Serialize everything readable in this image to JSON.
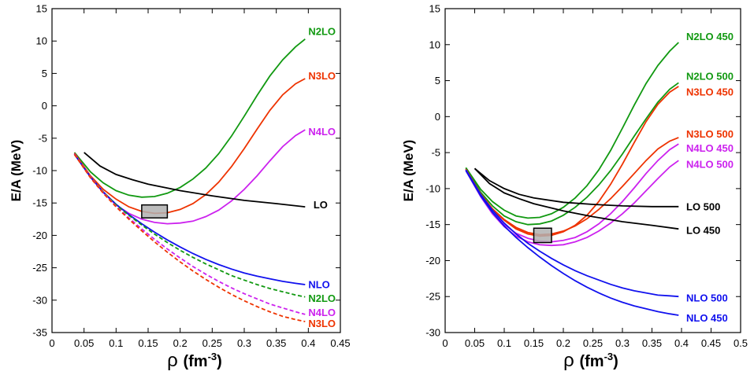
{
  "chart_data": [
    {
      "type": "line",
      "xlabel_symbol": "ρ",
      "xlabel_unit": "(fm",
      "xlabel_exp": "-3",
      "xlabel_close": ")",
      "ylabel": "E/A (MeV)",
      "xlim": [
        0,
        0.45
      ],
      "ylim": [
        -35,
        15
      ],
      "xticks": [
        "0",
        "0.05",
        "0.1",
        "0.15",
        "0.2",
        "0.25",
        "0.3",
        "0.35",
        "0.4",
        "0.45"
      ],
      "yticks": [
        "15",
        "10",
        "5",
        "0",
        "-5",
        "-10",
        "-15",
        "-20",
        "-25",
        "-30",
        "-35"
      ],
      "box": {
        "x": [
          0.14,
          0.18
        ],
        "y": [
          -17.3,
          -15.3
        ]
      },
      "series": [
        {
          "name": "N2LO",
          "label": "N2LO",
          "color": "#119911",
          "dash": false,
          "x": [
            0.035,
            0.06,
            0.08,
            0.1,
            0.12,
            0.14,
            0.16,
            0.18,
            0.2,
            0.22,
            0.24,
            0.26,
            0.28,
            0.3,
            0.32,
            0.34,
            0.36,
            0.38,
            0.395
          ],
          "y": [
            -7.2,
            -10.2,
            -11.9,
            -13.1,
            -13.8,
            -14.1,
            -14.0,
            -13.5,
            -12.6,
            -11.3,
            -9.6,
            -7.4,
            -4.7,
            -1.6,
            1.6,
            4.6,
            7.1,
            9.1,
            10.3
          ]
        },
        {
          "name": "N3LO",
          "label": "N3LO",
          "color": "#ee3300",
          "dash": false,
          "x": [
            0.035,
            0.06,
            0.08,
            0.1,
            0.12,
            0.14,
            0.16,
            0.18,
            0.2,
            0.22,
            0.24,
            0.26,
            0.28,
            0.3,
            0.32,
            0.34,
            0.36,
            0.38,
            0.395
          ],
          "y": [
            -7.3,
            -10.8,
            -12.9,
            -14.4,
            -15.6,
            -16.3,
            -16.6,
            -16.5,
            -16.0,
            -15.1,
            -13.7,
            -11.8,
            -9.4,
            -6.6,
            -3.6,
            -0.7,
            1.7,
            3.4,
            4.2
          ]
        },
        {
          "name": "N4LO",
          "label": "N4LO",
          "color": "#cc22ee",
          "dash": false,
          "x": [
            0.035,
            0.06,
            0.08,
            0.1,
            0.12,
            0.14,
            0.16,
            0.18,
            0.2,
            0.22,
            0.24,
            0.26,
            0.28,
            0.3,
            0.32,
            0.34,
            0.36,
            0.38,
            0.395
          ],
          "y": [
            -7.4,
            -11.0,
            -13.4,
            -15.3,
            -16.6,
            -17.5,
            -18.0,
            -18.2,
            -18.1,
            -17.8,
            -17.1,
            -16.1,
            -14.7,
            -12.9,
            -10.8,
            -8.5,
            -6.3,
            -4.6,
            -3.7
          ]
        },
        {
          "name": "LO",
          "label": "LO",
          "color": "#000000",
          "dash": false,
          "x": [
            0.05,
            0.075,
            0.1,
            0.125,
            0.15,
            0.2,
            0.25,
            0.3,
            0.35,
            0.395
          ],
          "y": [
            -7.2,
            -9.3,
            -10.6,
            -11.4,
            -12.1,
            -13.1,
            -13.9,
            -14.6,
            -15.1,
            -15.6
          ]
        },
        {
          "name": "NLO",
          "label": "NLO",
          "color": "#1111ee",
          "dash": false,
          "x": [
            0.035,
            0.06,
            0.08,
            0.1,
            0.12,
            0.14,
            0.16,
            0.18,
            0.2,
            0.22,
            0.24,
            0.26,
            0.28,
            0.3,
            0.32,
            0.34,
            0.36,
            0.38,
            0.395
          ],
          "y": [
            -7.5,
            -11.0,
            -13.3,
            -15.2,
            -16.8,
            -18.2,
            -19.5,
            -20.7,
            -21.8,
            -22.8,
            -23.7,
            -24.5,
            -25.2,
            -25.8,
            -26.3,
            -26.7,
            -27.1,
            -27.4,
            -27.6
          ]
        },
        {
          "name": "N2LO-dashed",
          "label": "N2LO",
          "color": "#119911",
          "dash": true,
          "x": [
            0.035,
            0.06,
            0.08,
            0.1,
            0.12,
            0.14,
            0.16,
            0.18,
            0.2,
            0.22,
            0.24,
            0.26,
            0.28,
            0.3,
            0.32,
            0.34,
            0.36,
            0.38,
            0.395
          ],
          "y": [
            -7.5,
            -11.0,
            -13.3,
            -15.3,
            -16.9,
            -18.4,
            -19.8,
            -21.1,
            -22.3,
            -23.4,
            -24.4,
            -25.3,
            -26.2,
            -26.9,
            -27.6,
            -28.2,
            -28.7,
            -29.2,
            -29.5
          ]
        },
        {
          "name": "N4LO-dashed",
          "label": "N4LO",
          "color": "#cc22ee",
          "dash": true,
          "x": [
            0.035,
            0.06,
            0.08,
            0.1,
            0.12,
            0.14,
            0.16,
            0.18,
            0.2,
            0.22,
            0.24,
            0.26,
            0.28,
            0.3,
            0.32,
            0.34,
            0.36,
            0.38,
            0.395
          ],
          "y": [
            -7.5,
            -11.0,
            -13.4,
            -15.5,
            -17.3,
            -19.0,
            -20.6,
            -22.1,
            -23.5,
            -24.8,
            -26.0,
            -27.1,
            -28.1,
            -29.0,
            -29.8,
            -30.6,
            -31.2,
            -31.8,
            -32.2
          ]
        },
        {
          "name": "N3LO-dashed",
          "label": "N3LO",
          "color": "#ee3300",
          "dash": true,
          "x": [
            0.035,
            0.06,
            0.08,
            0.1,
            0.12,
            0.14,
            0.16,
            0.18,
            0.2,
            0.22,
            0.24,
            0.26,
            0.28,
            0.3,
            0.32,
            0.34,
            0.36,
            0.38,
            0.395
          ],
          "y": [
            -7.5,
            -11.1,
            -13.5,
            -15.6,
            -17.5,
            -19.3,
            -21.0,
            -22.6,
            -24.1,
            -25.5,
            -26.8,
            -28.0,
            -29.1,
            -30.1,
            -31.0,
            -31.8,
            -32.5,
            -33.0,
            -33.3
          ]
        }
      ],
      "labels": [
        {
          "text": "N2LO",
          "color": "#119911",
          "x": 0.4,
          "y": 11.5
        },
        {
          "text": "N3LO",
          "color": "#ee3300",
          "x": 0.4,
          "y": 4.6
        },
        {
          "text": "N4LO",
          "color": "#cc22ee",
          "x": 0.4,
          "y": -4.0
        },
        {
          "text": "LO",
          "color": "#000000",
          "x": 0.408,
          "y": -15.3
        },
        {
          "text": "NLO",
          "color": "#1111ee",
          "x": 0.4,
          "y": -27.6
        },
        {
          "text": "N2LO",
          "color": "#119911",
          "x": 0.4,
          "y": -29.7
        },
        {
          "text": "N4LO",
          "color": "#cc22ee",
          "x": 0.4,
          "y": -31.9
        },
        {
          "text": "N3LO",
          "color": "#ee3300",
          "x": 0.4,
          "y": -33.6
        }
      ]
    },
    {
      "type": "line",
      "xlabel_symbol": "ρ",
      "xlabel_unit": "(fm",
      "xlabel_exp": "-3",
      "xlabel_close": ")",
      "ylabel": "E/A (MeV)",
      "xlim": [
        0,
        0.5
      ],
      "ylim": [
        -30,
        15
      ],
      "xticks": [
        "0",
        "0.05",
        "0.1",
        "0.15",
        "0.2",
        "0.25",
        "0.3",
        "0.35",
        "0.4",
        "0.45",
        "0.5"
      ],
      "yticks": [
        "15",
        "10",
        "5",
        "0",
        "-5",
        "-10",
        "-15",
        "-20",
        "-25",
        "-30"
      ],
      "box": {
        "x": [
          0.15,
          0.18
        ],
        "y": [
          -17.5,
          -15.5
        ]
      },
      "series": [
        {
          "name": "N2LO 450",
          "label": "N2LO 450",
          "color": "#119911",
          "dash": false,
          "x": [
            0.035,
            0.06,
            0.08,
            0.1,
            0.12,
            0.14,
            0.16,
            0.18,
            0.2,
            0.22,
            0.24,
            0.26,
            0.28,
            0.3,
            0.32,
            0.34,
            0.36,
            0.38,
            0.395
          ],
          "y": [
            -7.1,
            -10.1,
            -11.8,
            -13.0,
            -13.8,
            -14.1,
            -14.0,
            -13.5,
            -12.6,
            -11.3,
            -9.6,
            -7.4,
            -4.7,
            -1.6,
            1.6,
            4.6,
            7.1,
            9.1,
            10.3
          ]
        },
        {
          "name": "N2LO 500",
          "label": "N2LO 500",
          "color": "#119911",
          "dash": false,
          "x": [
            0.035,
            0.06,
            0.08,
            0.1,
            0.12,
            0.14,
            0.16,
            0.18,
            0.2,
            0.22,
            0.24,
            0.26,
            0.28,
            0.3,
            0.32,
            0.34,
            0.36,
            0.38,
            0.395
          ],
          "y": [
            -7.2,
            -10.5,
            -12.4,
            -13.8,
            -14.6,
            -15.0,
            -14.9,
            -14.5,
            -13.7,
            -12.6,
            -11.2,
            -9.5,
            -7.5,
            -5.2,
            -2.7,
            -0.3,
            2.0,
            3.8,
            4.7
          ]
        },
        {
          "name": "N3LO 450",
          "label": "N3LO 450",
          "color": "#ee3300",
          "dash": false,
          "x": [
            0.035,
            0.06,
            0.08,
            0.1,
            0.12,
            0.14,
            0.16,
            0.18,
            0.2,
            0.22,
            0.24,
            0.26,
            0.28,
            0.3,
            0.32,
            0.34,
            0.36,
            0.38,
            0.395
          ],
          "y": [
            -7.3,
            -10.8,
            -12.9,
            -14.4,
            -15.6,
            -16.3,
            -16.6,
            -16.5,
            -16.0,
            -15.1,
            -13.7,
            -11.8,
            -9.4,
            -6.6,
            -3.6,
            -0.7,
            1.7,
            3.4,
            4.2
          ]
        },
        {
          "name": "N3LO 500",
          "label": "N3LO 500",
          "color": "#ee3300",
          "dash": false,
          "x": [
            0.035,
            0.06,
            0.08,
            0.1,
            0.12,
            0.14,
            0.16,
            0.18,
            0.2,
            0.22,
            0.24,
            0.26,
            0.28,
            0.3,
            0.32,
            0.34,
            0.36,
            0.38,
            0.395
          ],
          "y": [
            -7.3,
            -10.7,
            -12.8,
            -14.3,
            -15.4,
            -16.1,
            -16.4,
            -16.3,
            -15.9,
            -15.2,
            -14.2,
            -12.9,
            -11.4,
            -9.7,
            -7.9,
            -6.1,
            -4.5,
            -3.4,
            -2.9
          ]
        },
        {
          "name": "N4LO 450",
          "label": "N4LO 450",
          "color": "#cc22ee",
          "dash": false,
          "x": [
            0.035,
            0.06,
            0.08,
            0.1,
            0.12,
            0.14,
            0.16,
            0.18,
            0.2,
            0.22,
            0.24,
            0.26,
            0.28,
            0.3,
            0.32,
            0.34,
            0.36,
            0.38,
            0.395
          ],
          "y": [
            -7.4,
            -11.0,
            -13.3,
            -15.0,
            -16.2,
            -16.9,
            -17.3,
            -17.4,
            -17.2,
            -16.8,
            -16.0,
            -14.9,
            -13.5,
            -11.8,
            -9.9,
            -7.9,
            -6.1,
            -4.6,
            -3.8
          ]
        },
        {
          "name": "N4LO 500",
          "label": "N4LO 500",
          "color": "#cc22ee",
          "dash": false,
          "x": [
            0.035,
            0.06,
            0.08,
            0.1,
            0.12,
            0.14,
            0.16,
            0.18,
            0.2,
            0.22,
            0.24,
            0.26,
            0.28,
            0.3,
            0.32,
            0.34,
            0.36,
            0.38,
            0.395
          ],
          "y": [
            -7.5,
            -11.1,
            -13.5,
            -15.3,
            -16.6,
            -17.4,
            -17.8,
            -17.9,
            -17.8,
            -17.4,
            -16.8,
            -15.9,
            -14.8,
            -13.5,
            -12.0,
            -10.3,
            -8.6,
            -7.0,
            -6.1
          ]
        },
        {
          "name": "LO 500",
          "label": "LO 500",
          "color": "#000000",
          "dash": false,
          "x": [
            0.05,
            0.075,
            0.1,
            0.125,
            0.15,
            0.2,
            0.25,
            0.3,
            0.35,
            0.395
          ],
          "y": [
            -7.2,
            -8.9,
            -10.0,
            -10.8,
            -11.3,
            -11.9,
            -12.2,
            -12.4,
            -12.5,
            -12.5
          ]
        },
        {
          "name": "LO 450",
          "label": "LO 450",
          "color": "#000000",
          "dash": false,
          "x": [
            0.05,
            0.075,
            0.1,
            0.125,
            0.15,
            0.2,
            0.25,
            0.3,
            0.35,
            0.395
          ],
          "y": [
            -7.2,
            -9.3,
            -10.6,
            -11.4,
            -12.1,
            -13.1,
            -13.9,
            -14.6,
            -15.1,
            -15.6
          ]
        },
        {
          "name": "NLO 500",
          "label": "NLO 500",
          "color": "#1111ee",
          "dash": false,
          "x": [
            0.035,
            0.06,
            0.08,
            0.1,
            0.12,
            0.14,
            0.16,
            0.18,
            0.2,
            0.22,
            0.24,
            0.26,
            0.28,
            0.3,
            0.32,
            0.34,
            0.36,
            0.38,
            0.395
          ],
          "y": [
            -7.4,
            -10.8,
            -13.0,
            -14.8,
            -16.3,
            -17.6,
            -18.7,
            -19.7,
            -20.6,
            -21.4,
            -22.1,
            -22.7,
            -23.3,
            -23.8,
            -24.2,
            -24.5,
            -24.8,
            -24.9,
            -25.0
          ]
        },
        {
          "name": "NLO 450",
          "label": "NLO 450",
          "color": "#1111ee",
          "dash": false,
          "x": [
            0.035,
            0.06,
            0.08,
            0.1,
            0.12,
            0.14,
            0.16,
            0.18,
            0.2,
            0.22,
            0.24,
            0.26,
            0.28,
            0.3,
            0.32,
            0.34,
            0.36,
            0.38,
            0.395
          ],
          "y": [
            -7.5,
            -11.0,
            -13.3,
            -15.2,
            -16.8,
            -18.2,
            -19.5,
            -20.7,
            -21.8,
            -22.8,
            -23.7,
            -24.5,
            -25.2,
            -25.8,
            -26.3,
            -26.7,
            -27.1,
            -27.4,
            -27.6
          ]
        }
      ],
      "labels": [
        {
          "text": "N2LO 450",
          "color": "#119911",
          "x": 0.408,
          "y": 11.1
        },
        {
          "text": "N2LO 500",
          "color": "#119911",
          "x": 0.408,
          "y": 5.6
        },
        {
          "text": "N3LO 450",
          "color": "#ee3300",
          "x": 0.408,
          "y": 3.4
        },
        {
          "text": "N3LO 500",
          "color": "#ee3300",
          "x": 0.408,
          "y": -2.4
        },
        {
          "text": "N4LO 450",
          "color": "#cc22ee",
          "x": 0.408,
          "y": -4.4
        },
        {
          "text": "N4LO 500",
          "color": "#cc22ee",
          "x": 0.408,
          "y": -6.6
        },
        {
          "text": "LO 500",
          "color": "#000000",
          "x": 0.408,
          "y": -12.5
        },
        {
          "text": "LO 450",
          "color": "#000000",
          "x": 0.408,
          "y": -15.8
        },
        {
          "text": "NLO 500",
          "color": "#1111ee",
          "x": 0.408,
          "y": -25.2
        },
        {
          "text": "NLO 450",
          "color": "#1111ee",
          "x": 0.408,
          "y": -28.0
        }
      ]
    }
  ]
}
